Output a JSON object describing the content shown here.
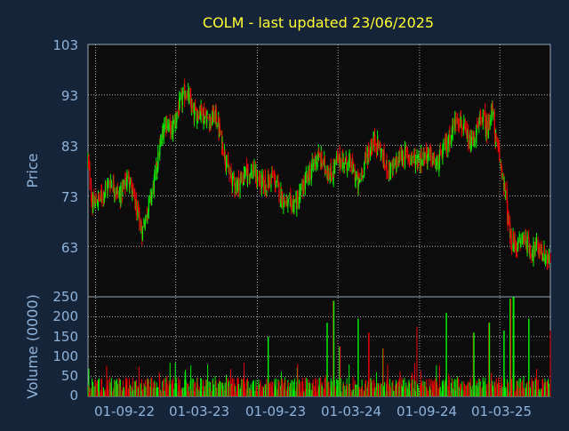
{
  "colors": {
    "background": "#16243a",
    "plot_background": "#0c0c0c",
    "up": "#00ee00",
    "down": "#ee0000",
    "title": "#ffff33",
    "axis_text": "#8fb3d9",
    "frame": "#9aa6b4",
    "grid": "#c8d2dc"
  },
  "chart_data": [
    {
      "type": "candlestick",
      "title": "COLM - last updated 23/06/2025",
      "ylabel": "Price",
      "ylim": [
        53,
        103
      ],
      "yticks": [
        "103",
        "93",
        "83",
        "73",
        "63"
      ],
      "x_range": [
        "2022-08-15",
        "2025-06-23"
      ],
      "xticks": [
        {
          "date": "2022-09-01",
          "label": "01-09-22"
        },
        {
          "date": "2023-03-01",
          "label": "01-03-23"
        },
        {
          "date": "2023-09-01",
          "label": "01-09-23"
        },
        {
          "date": "2024-03-01",
          "label": "01-03-24"
        },
        {
          "date": "2024-09-01",
          "label": "01-09-24"
        },
        {
          "date": "2025-03-01",
          "label": "01-03-25"
        }
      ],
      "grid": true,
      "price_path": [
        [
          "2022-08-15",
          80
        ],
        [
          "2022-08-25",
          71
        ],
        [
          "2022-09-15",
          73
        ],
        [
          "2022-10-05",
          76
        ],
        [
          "2022-10-25",
          73
        ],
        [
          "2022-11-15",
          77
        ],
        [
          "2022-11-30",
          71
        ],
        [
          "2022-12-15",
          66
        ],
        [
          "2022-12-30",
          71
        ],
        [
          "2023-01-10",
          75
        ],
        [
          "2023-01-25",
          83
        ],
        [
          "2023-02-05",
          88
        ],
        [
          "2023-02-20",
          86
        ],
        [
          "2023-03-10",
          91
        ],
        [
          "2023-03-25",
          94
        ],
        [
          "2023-04-10",
          89
        ],
        [
          "2023-04-25",
          90
        ],
        [
          "2023-05-15",
          88
        ],
        [
          "2023-05-30",
          89
        ],
        [
          "2023-06-15",
          83
        ],
        [
          "2023-06-30",
          77
        ],
        [
          "2023-07-15",
          75
        ],
        [
          "2023-08-01",
          77
        ],
        [
          "2023-08-20",
          78
        ],
        [
          "2023-09-05",
          76
        ],
        [
          "2023-09-20",
          75
        ],
        [
          "2023-10-05",
          77
        ],
        [
          "2023-10-25",
          73
        ],
        [
          "2023-11-10",
          71
        ],
        [
          "2023-11-30",
          72
        ],
        [
          "2023-12-15",
          75
        ],
        [
          "2023-12-30",
          78
        ],
        [
          "2024-01-15",
          81
        ],
        [
          "2024-01-30",
          79
        ],
        [
          "2024-02-15",
          77
        ],
        [
          "2024-02-28",
          80
        ],
        [
          "2024-03-15",
          80
        ],
        [
          "2024-04-01",
          79
        ],
        [
          "2024-04-15",
          75
        ],
        [
          "2024-05-01",
          80
        ],
        [
          "2024-05-20",
          84
        ],
        [
          "2024-06-01",
          83
        ],
        [
          "2024-06-15",
          79
        ],
        [
          "2024-07-01",
          78
        ],
        [
          "2024-07-20",
          81
        ],
        [
          "2024-08-10",
          81
        ],
        [
          "2024-08-25",
          80
        ],
        [
          "2024-09-10",
          81
        ],
        [
          "2024-09-25",
          81
        ],
        [
          "2024-10-10",
          79
        ],
        [
          "2024-10-25",
          82
        ],
        [
          "2024-11-10",
          85
        ],
        [
          "2024-11-25",
          89
        ],
        [
          "2024-12-10",
          86
        ],
        [
          "2024-12-25",
          83
        ],
        [
          "2025-01-05",
          85
        ],
        [
          "2025-01-20",
          89
        ],
        [
          "2025-02-01",
          86
        ],
        [
          "2025-02-10",
          91
        ],
        [
          "2025-02-20",
          84
        ],
        [
          "2025-03-01",
          80
        ],
        [
          "2025-03-10",
          76
        ],
        [
          "2025-03-25",
          64
        ],
        [
          "2025-04-10",
          63
        ],
        [
          "2025-04-25",
          65
        ],
        [
          "2025-05-10",
          62
        ],
        [
          "2025-05-25",
          63
        ],
        [
          "2025-06-10",
          61
        ],
        [
          "2025-06-23",
          60
        ]
      ]
    },
    {
      "type": "bar",
      "ylabel": "Volume (0000)",
      "ylim": [
        0,
        250
      ],
      "yticks": [
        "250",
        "200",
        "150",
        "100",
        "50",
        "0"
      ],
      "x_range": [
        "2022-08-15",
        "2025-06-23"
      ],
      "volume_spikes": [
        [
          "2023-09-25",
          150
        ],
        [
          "2024-02-05",
          185
        ],
        [
          "2024-02-20",
          240
        ],
        [
          "2024-03-05",
          125
        ],
        [
          "2024-04-15",
          195
        ],
        [
          "2024-05-10",
          160
        ],
        [
          "2024-06-10",
          120
        ],
        [
          "2024-08-25",
          175
        ],
        [
          "2024-11-01",
          210
        ],
        [
          "2025-01-01",
          160
        ],
        [
          "2025-02-05",
          185
        ],
        [
          "2025-03-10",
          165
        ],
        [
          "2025-03-25",
          245
        ],
        [
          "2025-04-01",
          250
        ],
        [
          "2025-05-05",
          195
        ],
        [
          "2025-06-23",
          165
        ]
      ],
      "volume_typical": 30
    }
  ]
}
